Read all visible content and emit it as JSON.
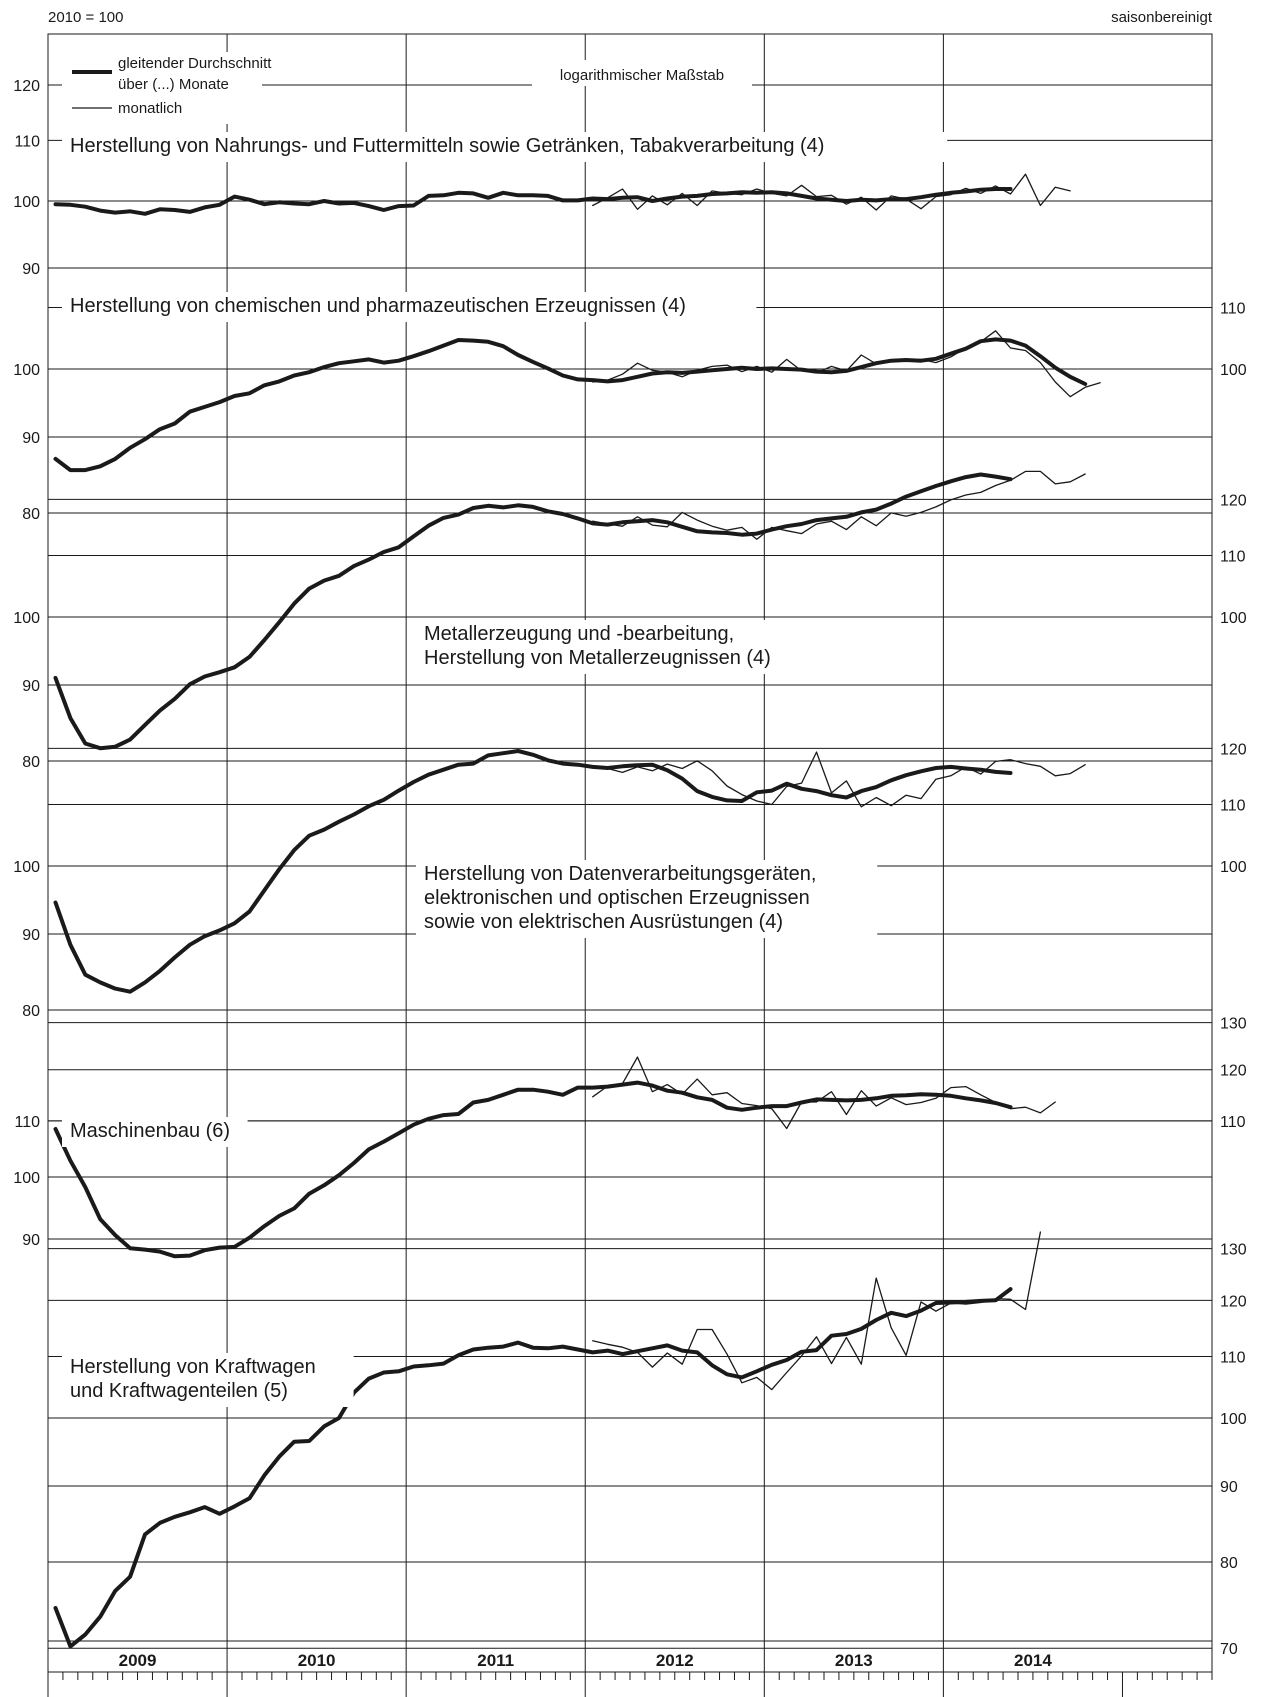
{
  "header": {
    "left_label": "2010 = 100",
    "right_label": "saisonbereinigt"
  },
  "legend": {
    "ma_line1": "gleitender Durchschnitt",
    "ma_line2": "über (...) Monate",
    "monthly": "monatlich",
    "scale_note": "logarithmischer Maßstab"
  },
  "colors": {
    "ink": "#1a1a1a",
    "background": "#ffffff"
  },
  "chart_data": [
    {
      "type": "line",
      "title": [
        "Herstellung von Nahrungs- und Futtermitteln sowie Getränken, Tabakverarbeitung (4)"
      ],
      "y_scale": "log",
      "ylim": [
        88,
        125
      ],
      "left_ticks": [
        90,
        100,
        110,
        120
      ],
      "right_ticks": [],
      "x_start": "2009-01",
      "series": [
        {
          "name": "gleitender Durchschnitt",
          "values": [
            99.5,
            99.4,
            99.1,
            98.5,
            98.2,
            98.4,
            98.0,
            98.7,
            98.6,
            98.3,
            99.0,
            99.4,
            100.7,
            100.2,
            99.5,
            99.8,
            99.6,
            99.5,
            100.0,
            99.6,
            99.7,
            99.2,
            98.6,
            99.2,
            99.3,
            100.8,
            100.9,
            101.3,
            101.2,
            100.5,
            101.3,
            100.9,
            100.9,
            100.8,
            100.1,
            100.1,
            100.4,
            100.3,
            100.5,
            100.6,
            100.0,
            100.4,
            100.7,
            100.8,
            101.1,
            101.2,
            101.4,
            101.3,
            101.4,
            101.2,
            100.8,
            100.4,
            100.2,
            100.0,
            100.2,
            100.1,
            100.3,
            100.3,
            100.6,
            101.0,
            101.3,
            101.5,
            101.8,
            101.9,
            101.9
          ]
        },
        {
          "name": "monatlich",
          "start_index": 36,
          "values": [
            99.3,
            100.5,
            101.9,
            98.7,
            100.8,
            99.4,
            101.2,
            99.3,
            101.6,
            101.2,
            101.0,
            101.9,
            101.2,
            100.8,
            102.5,
            100.7,
            100.9,
            99.5,
            100.6,
            98.6,
            100.8,
            100.3,
            98.8,
            100.7,
            101.0,
            102.0,
            101.2,
            102.4,
            101.1,
            104.3,
            99.3,
            102.2,
            101.6
          ]
        }
      ]
    },
    {
      "type": "line",
      "title": [
        "Herstellung von chemischen und pharmazeutischen Erzeugnissen (4)"
      ],
      "y_scale": "log",
      "ylim": [
        78,
        112
      ],
      "left_ticks": [
        80,
        90,
        100
      ],
      "right_ticks": [
        100,
        110
      ],
      "x_start": "2009-01",
      "series": [
        {
          "name": "gleitender Durchschnitt",
          "values": [
            87,
            85.5,
            85.5,
            86,
            87,
            88.5,
            89.7,
            91.1,
            91.9,
            93.6,
            94.3,
            95.0,
            95.9,
            96.3,
            97.5,
            98.1,
            99.0,
            99.5,
            100.3,
            100.9,
            101.2,
            101.5,
            101.0,
            101.3,
            102.0,
            102.8,
            103.7,
            104.6,
            104.5,
            104.3,
            103.6,
            102.2,
            101.1,
            100.1,
            99.0,
            98.4,
            98.3,
            98.1,
            98.3,
            98.8,
            99.3,
            99.5,
            99.4,
            99.6,
            99.8,
            100.0,
            100.2,
            100.0,
            100.1,
            100.0,
            99.9,
            99.6,
            99.5,
            99.7,
            100.3,
            100.9,
            101.3,
            101.4,
            101.3,
            101.6,
            102.4,
            103.2,
            104.4,
            104.7,
            104.5,
            103.7,
            102.0,
            100.2,
            98.8,
            97.7
          ]
        },
        {
          "name": "monatlich",
          "start_index": 36,
          "values": [
            98.0,
            98.3,
            99.2,
            100.9,
            99.8,
            99.5,
            98.8,
            99.8,
            100.4,
            100.6,
            99.6,
            100.4,
            99.5,
            101.5,
            99.7,
            99.4,
            100.4,
            99.7,
            102.2,
            100.8,
            101.4,
            101.4,
            101.5,
            101.0,
            101.9,
            103.3,
            104.3,
            106.1,
            103.3,
            102.9,
            101.0,
            98.0,
            95.8,
            97.2,
            97.9
          ]
        }
      ]
    },
    {
      "type": "line",
      "title": [
        "Metallerzeugung und -bearbeitung,",
        "Herstellung von Metallerzeugnissen (4)"
      ],
      "y_scale": "log",
      "ylim": [
        78,
        125
      ],
      "left_ticks": [
        80,
        90,
        100
      ],
      "right_ticks": [
        100,
        110,
        120
      ],
      "x_start": "2009-01",
      "series": [
        {
          "name": "gleitender Durchschnitt",
          "values": [
            91,
            85.5,
            82.2,
            81.6,
            81.8,
            82.7,
            84.6,
            86.5,
            88.1,
            90.1,
            91.2,
            91.8,
            92.5,
            94.0,
            96.5,
            99.2,
            102.1,
            104.5,
            105.8,
            106.6,
            108.2,
            109.3,
            110.6,
            111.4,
            113.3,
            115.2,
            116.6,
            117.2,
            118.4,
            118.8,
            118.5,
            118.9,
            118.6,
            117.8,
            117.3,
            116.5,
            115.6,
            115.4,
            115.8,
            116.0,
            116.2,
            115.8,
            115.0,
            114.2,
            114.0,
            113.9,
            113.6,
            113.8,
            114.5,
            115.1,
            115.5,
            116.2,
            116.5,
            116.8,
            117.6,
            118.1,
            119.2,
            120.5,
            121.5,
            122.5,
            123.4,
            124.2,
            124.7,
            124.3,
            123.8
          ]
        },
        {
          "name": "monatlich",
          "start_index": 36,
          "values": [
            116.0,
            115.5,
            115.1,
            116.8,
            115.3,
            115.0,
            117.6,
            116.2,
            115.1,
            114.4,
            114.9,
            112.8,
            114.9,
            114.3,
            113.8,
            115.5,
            116.0,
            114.5,
            116.8,
            115.2,
            117.5,
            116.9,
            117.6,
            118.6,
            119.9,
            120.8,
            121.3,
            122.6,
            123.6,
            125.3,
            125.3,
            122.9,
            123.3,
            124.8
          ]
        }
      ]
    },
    {
      "type": "line",
      "title": [
        "Herstellung von Datenverarbeitungsgeräten,",
        "elektronischen und optischen Erzeugnissen",
        "sowie von elektrischen Ausrüstungen (4)"
      ],
      "y_scale": "log",
      "ylim": [
        78,
        125
      ],
      "left_ticks": [
        80,
        90,
        100
      ],
      "right_ticks": [
        100,
        110,
        120
      ],
      "x_start": "2009-01",
      "series": [
        {
          "name": "gleitender Durchschnitt",
          "values": [
            94.5,
            88.5,
            84.5,
            83.5,
            82.7,
            82.3,
            83.5,
            85.0,
            86.8,
            88.5,
            89.7,
            90.5,
            91.5,
            93.2,
            96.3,
            99.5,
            102.5,
            104.8,
            105.8,
            107.1,
            108.3,
            109.7,
            110.8,
            112.4,
            113.9,
            115.2,
            116.1,
            117.0,
            117.2,
            118.7,
            119.1,
            119.5,
            118.8,
            117.8,
            117.2,
            117.0,
            116.6,
            116.4,
            116.7,
            116.9,
            117.0,
            116.0,
            114.5,
            112.3,
            111.3,
            110.7,
            110.6,
            112.1,
            112.4,
            113.6,
            112.7,
            112.3,
            111.6,
            111.2,
            112.3,
            113.0,
            114.2,
            115.1,
            115.8,
            116.4,
            116.6,
            116.3,
            116.1,
            115.7,
            115.5
          ]
        },
        {
          "name": "monatlich",
          "start_index": 36,
          "values": [
            116.4,
            116.3,
            115.6,
            116.6,
            115.9,
            117.1,
            116.3,
            117.7,
            115.9,
            113.2,
            111.7,
            110.6,
            110.0,
            113.1,
            113.7,
            119.3,
            112.0,
            114.1,
            109.6,
            111.2,
            109.8,
            111.6,
            111.0,
            114.4,
            115.0,
            116.6,
            115.3,
            117.6,
            117.9,
            117.2,
            116.7,
            115.0,
            115.4,
            117.0
          ]
        }
      ]
    },
    {
      "type": "line",
      "title": [
        "Maschinenbau (6)"
      ],
      "y_scale": "log",
      "ylim": [
        84,
        135
      ],
      "left_ticks": [
        90,
        100,
        110
      ],
      "right_ticks": [
        110,
        120,
        130
      ],
      "x_start": "2009-01",
      "series": [
        {
          "name": "gleitender Durchschnitt",
          "values": [
            108.5,
            102.8,
            98.3,
            93.1,
            90.6,
            88.6,
            88.4,
            88.1,
            87.4,
            87.5,
            88.3,
            88.7,
            88.8,
            90.2,
            92.0,
            93.6,
            94.8,
            97.2,
            98.6,
            100.3,
            102.4,
            104.8,
            106.2,
            107.7,
            109.3,
            110.4,
            111.1,
            111.3,
            113.5,
            114.0,
            115.0,
            116.0,
            116.0,
            115.6,
            115.0,
            116.4,
            116.4,
            116.6,
            117.0,
            117.4,
            116.8,
            115.8,
            115.4,
            114.5,
            114.0,
            112.5,
            112.1,
            112.5,
            112.8,
            112.8,
            113.5,
            114.1,
            114.0,
            113.9,
            114.0,
            114.3,
            114.8,
            114.9,
            115.1,
            115.0,
            114.8,
            114.3,
            113.9,
            113.4,
            112.6
          ]
        },
        {
          "name": "monatlich",
          "start_index": 36,
          "values": [
            114.6,
            116.7,
            117.2,
            122.6,
            115.6,
            117.0,
            115.1,
            118.1,
            115.0,
            115.4,
            113.3,
            112.9,
            112.3,
            108.6,
            113.6,
            113.6,
            115.6,
            111.2,
            115.8,
            112.8,
            114.4,
            113.1,
            113.5,
            114.3,
            116.4,
            116.6,
            115.0,
            113.5,
            112.3,
            112.6,
            111.5,
            113.6
          ]
        }
      ]
    },
    {
      "type": "line",
      "title": [
        "Herstellung von Kraftwagen",
        "und Kraftwagenteilen (5)"
      ],
      "y_scale": "log",
      "ylim": [
        68,
        138
      ],
      "left_ticks": [],
      "right_ticks": [
        70,
        80,
        90,
        100,
        110,
        120,
        130
      ],
      "x_start": "2009-01",
      "series": [
        {
          "name": "gleitender Durchschnitt",
          "values": [
            74.5,
            70.2,
            71.5,
            73.5,
            76.5,
            78.2,
            83.5,
            85.0,
            85.8,
            86.4,
            87.1,
            86.2,
            87.2,
            88.3,
            91.5,
            94.2,
            96.4,
            96.5,
            98.7,
            100.0,
            104.0,
            106.3,
            107.3,
            107.5,
            108.3,
            108.5,
            108.8,
            110.2,
            111.2,
            111.5,
            111.7,
            112.4,
            111.5,
            111.4,
            111.7,
            111.2,
            110.7,
            111.0,
            110.4,
            110.9,
            111.4,
            111.9,
            111.0,
            110.7,
            108.5,
            107.0,
            106.5,
            107.5,
            108.6,
            109.4,
            110.8,
            111.1,
            113.6,
            113.9,
            114.8,
            116.4,
            117.7,
            117.1,
            118.1,
            119.5,
            119.6,
            119.7,
            119.9,
            120.0,
            122.1
          ]
        },
        {
          "name": "monatlich",
          "start_index": 36,
          "values": [
            112.7,
            112.1,
            111.6,
            110.7,
            108.2,
            110.6,
            108.7,
            114.7,
            114.7,
            110.4,
            105.6,
            106.5,
            104.5,
            107.3,
            110.1,
            113.4,
            108.8,
            113.3,
            108.7,
            124.2,
            115.0,
            110.2,
            119.7,
            118.0,
            119.5,
            119.3,
            119.6,
            120.3,
            120.2,
            118.3,
            133.4
          ]
        }
      ]
    }
  ],
  "x_axis": {
    "year_labels": [
      "2009",
      "2010",
      "2011",
      "2012",
      "2013",
      "2014"
    ],
    "months_per_year": 12
  }
}
